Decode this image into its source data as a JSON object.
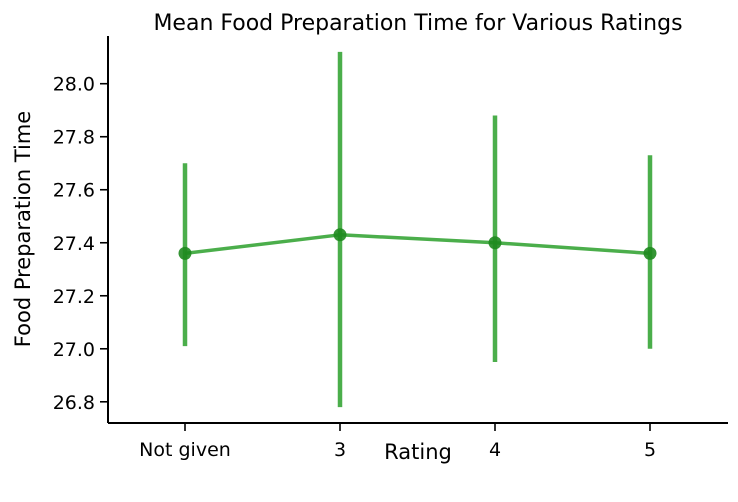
{
  "chart_data": {
    "type": "line",
    "title": "Mean Food Preparation Time for Various Ratings",
    "xlabel": "Rating",
    "ylabel": "Food Preparation Time",
    "categories": [
      "Not given",
      "3",
      "4",
      "5"
    ],
    "series": [
      {
        "values": [
          27.36,
          27.43,
          27.4,
          27.36
        ],
        "error_low": [
          27.01,
          26.78,
          26.95,
          27.0
        ],
        "error_high": [
          27.7,
          28.12,
          27.88,
          27.73
        ]
      }
    ],
    "ylim": [
      26.72,
      28.18
    ],
    "yticks": [
      "26.8",
      "27.0",
      "27.2",
      "27.4",
      "27.6",
      "27.8",
      "28.0"
    ],
    "grid": false,
    "color": "#2ca02c"
  }
}
